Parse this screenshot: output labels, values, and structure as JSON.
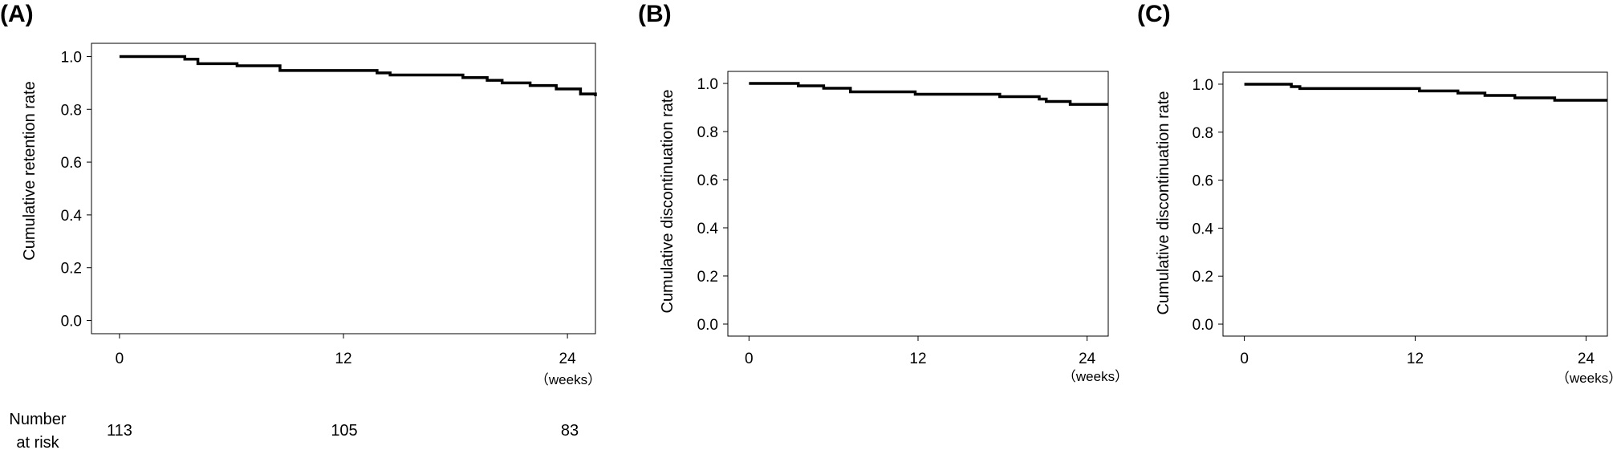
{
  "chart_data": [
    {
      "type": "line",
      "panel_label": "(A)",
      "ylabel": "Cumulative retention rate",
      "xlabel": "",
      "x_unit_label": "（weeks）",
      "xlim": [
        -1.5,
        25.5
      ],
      "ylim": [
        -0.05,
        1.05
      ],
      "x_ticks": [
        0,
        12,
        24
      ],
      "x_tick_labels": [
        "0",
        "12",
        "24"
      ],
      "y_ticks": [
        0.0,
        0.2,
        0.4,
        0.6,
        0.8,
        1.0
      ],
      "y_tick_labels": [
        "0.0",
        "0.2",
        "0.4",
        "0.6",
        "0.8",
        "1.0"
      ],
      "series": [
        {
          "style": "step",
          "x": [
            0,
            3.5,
            4.2,
            6.3,
            8.6,
            13.8,
            14.5,
            18.4,
            19.7,
            20.5,
            22.0,
            23.4,
            24.7,
            25.5
          ],
          "y": [
            1.0,
            0.99,
            0.973,
            0.965,
            0.947,
            0.938,
            0.93,
            0.92,
            0.91,
            0.9,
            0.89,
            0.877,
            0.858,
            0.85
          ]
        }
      ],
      "risk_table": {
        "title_line1": "Number",
        "title_line2": "at risk",
        "times": [
          0,
          12,
          24
        ],
        "counts": [
          "113",
          "105",
          "83"
        ]
      },
      "grid": false,
      "legend": "none"
    },
    {
      "type": "line",
      "panel_label": "(B)",
      "ylabel": "Cumulative discontinuation rate",
      "xlabel": "",
      "x_unit_label": "（weeks）",
      "xlim": [
        -1.5,
        25.5
      ],
      "ylim": [
        -0.05,
        1.05
      ],
      "x_ticks": [
        0,
        12,
        24
      ],
      "x_tick_labels": [
        "0",
        "12",
        "24"
      ],
      "y_ticks": [
        0.0,
        0.2,
        0.4,
        0.6,
        0.8,
        1.0
      ],
      "y_tick_labels": [
        "0.0",
        "0.2",
        "0.4",
        "0.6",
        "0.8",
        "1.0"
      ],
      "series": [
        {
          "style": "step",
          "x": [
            0,
            3.5,
            5.3,
            7.2,
            11.8,
            17.8,
            20.6,
            21.1,
            22.8,
            25.5
          ],
          "y": [
            1.0,
            0.99,
            0.98,
            0.965,
            0.955,
            0.945,
            0.935,
            0.925,
            0.913,
            0.913
          ]
        }
      ],
      "grid": false,
      "legend": "none"
    },
    {
      "type": "line",
      "panel_label": "(C)",
      "ylabel": "Cumulative discontinuation rate",
      "xlabel": "",
      "x_unit_label": "（weeks）",
      "xlim": [
        -1.5,
        25.5
      ],
      "ylim": [
        -0.05,
        1.05
      ],
      "x_ticks": [
        0,
        12,
        24
      ],
      "x_tick_labels": [
        "0",
        "12",
        "24"
      ],
      "y_ticks": [
        0.0,
        0.2,
        0.4,
        0.6,
        0.8,
        1.0
      ],
      "y_tick_labels": [
        "0.0",
        "0.2",
        "0.4",
        "0.6",
        "0.8",
        "1.0"
      ],
      "series": [
        {
          "style": "step",
          "x": [
            0,
            3.3,
            3.9,
            12.3,
            15.0,
            16.9,
            19.0,
            21.8,
            25.5
          ],
          "y": [
            1.0,
            0.99,
            0.982,
            0.972,
            0.963,
            0.953,
            0.943,
            0.933,
            0.933
          ]
        }
      ],
      "grid": false,
      "legend": "none"
    }
  ]
}
